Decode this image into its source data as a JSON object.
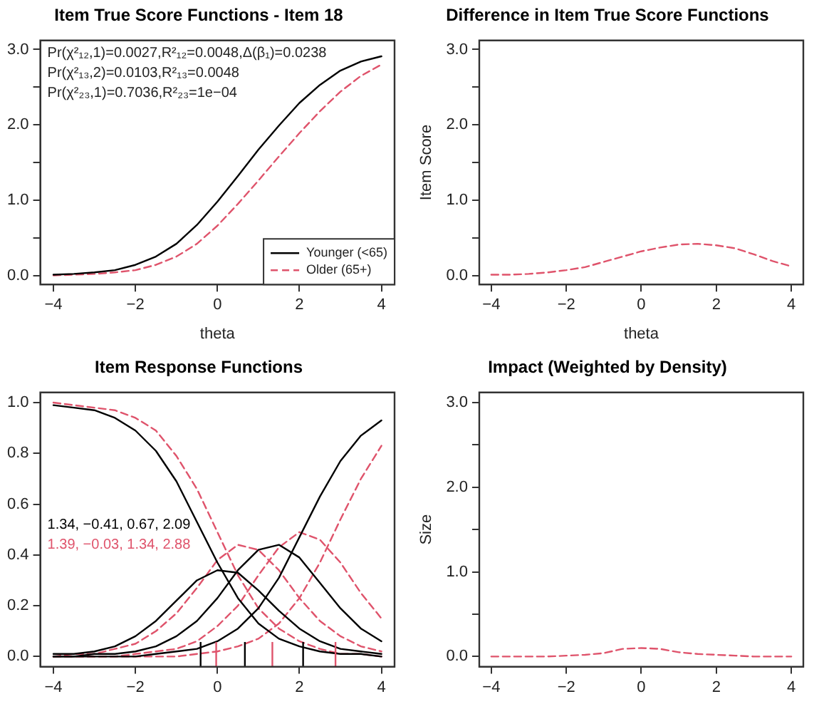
{
  "chart_data": [
    {
      "type": "line",
      "title": "Item True Score Functions - Item 18",
      "xlabel": "theta",
      "xlim": [
        -4.32,
        4.32
      ],
      "ylim": [
        -0.12,
        3.12
      ],
      "xticks": [
        -4,
        -2,
        0,
        2,
        4
      ],
      "yticks": [
        {
          "value": 0,
          "label": "0.0"
        },
        {
          "value": 0.5,
          "label": null
        },
        {
          "value": 1,
          "label": "1.0"
        },
        {
          "value": 1.5,
          "label": null
        },
        {
          "value": 2,
          "label": "2.0"
        },
        {
          "value": 2.5,
          "label": null
        },
        {
          "value": 3,
          "label": "3.0"
        }
      ],
      "x": [
        -4,
        -3.5,
        -3,
        -2.5,
        -2,
        -1.5,
        -1,
        -0.5,
        0,
        0.5,
        1,
        1.5,
        2,
        2.5,
        3,
        3.5,
        4
      ],
      "series": [
        {
          "name": "Younger (<65)",
          "color": "#000000",
          "line_style": "solid",
          "values": [
            0.01,
            0.02,
            0.04,
            0.07,
            0.14,
            0.25,
            0.42,
            0.67,
            0.98,
            1.32,
            1.67,
            1.99,
            2.29,
            2.53,
            2.72,
            2.84,
            2.91
          ]
        },
        {
          "name": "Older (65+)",
          "color": "#df536b",
          "line_style": "dashed",
          "values": [
            0.0,
            0.01,
            0.02,
            0.04,
            0.07,
            0.14,
            0.25,
            0.42,
            0.66,
            0.95,
            1.26,
            1.58,
            1.89,
            2.18,
            2.44,
            2.65,
            2.8
          ]
        }
      ],
      "legend": "bottom right",
      "grid": false,
      "annotations": [
        "Pr(χ²₁₂,1)=0.0027,R²₁₂=0.0048,Δ(β₁)=0.0238",
        "Pr(χ²₁₃,2)=0.0103,R²₁₃=0.0048",
        "Pr(χ²₂₃,1)=0.7036,R²₂₃=1e−04"
      ]
    },
    {
      "type": "line",
      "title": "Difference in Item True Score Functions",
      "xlabel": "theta",
      "ylabel": "Item Score",
      "xlim": [
        -4.32,
        4.32
      ],
      "ylim": [
        -0.12,
        3.12
      ],
      "xticks": [
        -4,
        -2,
        0,
        2,
        4
      ],
      "yticks": [
        {
          "value": 0,
          "label": "0.0"
        },
        {
          "value": 0.5,
          "label": null
        },
        {
          "value": 1,
          "label": "1.0"
        },
        {
          "value": 1.5,
          "label": null
        },
        {
          "value": 2,
          "label": "2.0"
        },
        {
          "value": 2.5,
          "label": null
        },
        {
          "value": 3,
          "label": "3.0"
        }
      ],
      "x": [
        -4,
        -3.5,
        -3,
        -2.5,
        -2,
        -1.5,
        -1,
        -0.5,
        0,
        0.5,
        1,
        1.5,
        2,
        2.5,
        3,
        3.5,
        4
      ],
      "series": [
        {
          "color": "#df536b",
          "line_style": "dashed",
          "values": [
            0.01,
            0.01,
            0.02,
            0.04,
            0.07,
            0.11,
            0.18,
            0.25,
            0.32,
            0.37,
            0.41,
            0.42,
            0.4,
            0.36,
            0.28,
            0.19,
            0.12
          ]
        }
      ],
      "grid": false
    },
    {
      "type": "line",
      "title": "Item Response Functions",
      "xlim": [
        -4.32,
        4.32
      ],
      "ylim": [
        -0.04,
        1.04
      ],
      "xticks": [
        -4,
        -2,
        0,
        2,
        4
      ],
      "yticks": [
        {
          "value": 0,
          "label": "0.0"
        },
        {
          "value": 0.2,
          "label": "0.2"
        },
        {
          "value": 0.4,
          "label": "0.4"
        },
        {
          "value": 0.6,
          "label": "0.6"
        },
        {
          "value": 0.8,
          "label": "0.8"
        },
        {
          "value": 1,
          "label": "1.0"
        }
      ],
      "x": [
        -4,
        -3.5,
        -3,
        -2.5,
        -2,
        -1.5,
        -1,
        -0.5,
        0,
        0.5,
        1,
        1.5,
        2,
        2.5,
        3,
        3.5,
        4
      ],
      "series": [
        {
          "color": "#000000",
          "line_style": "solid",
          "values": [
            0.99,
            0.98,
            0.97,
            0.94,
            0.89,
            0.81,
            0.69,
            0.53,
            0.37,
            0.23,
            0.13,
            0.07,
            0.04,
            0.02,
            0.01,
            0.01,
            0.0
          ]
        },
        {
          "color": "#000000",
          "line_style": "solid",
          "values": [
            0.01,
            0.01,
            0.02,
            0.04,
            0.08,
            0.14,
            0.22,
            0.3,
            0.34,
            0.33,
            0.26,
            0.18,
            0.11,
            0.06,
            0.03,
            0.02,
            0.01
          ]
        },
        {
          "color": "#000000",
          "line_style": "solid",
          "values": [
            0.0,
            0.0,
            0.01,
            0.01,
            0.02,
            0.04,
            0.08,
            0.14,
            0.23,
            0.34,
            0.42,
            0.44,
            0.39,
            0.29,
            0.19,
            0.11,
            0.06
          ]
        },
        {
          "color": "#000000",
          "line_style": "solid",
          "values": [
            0.0,
            0.0,
            0.0,
            0.0,
            0.0,
            0.01,
            0.02,
            0.03,
            0.06,
            0.11,
            0.19,
            0.31,
            0.47,
            0.63,
            0.77,
            0.87,
            0.93
          ]
        },
        {
          "color": "#df536b",
          "line_style": "dashed",
          "values": [
            1.0,
            0.99,
            0.98,
            0.97,
            0.94,
            0.89,
            0.79,
            0.66,
            0.49,
            0.32,
            0.19,
            0.11,
            0.06,
            0.03,
            0.01,
            0.01,
            0.0
          ]
        },
        {
          "color": "#df536b",
          "line_style": "dashed",
          "values": [
            0.0,
            0.01,
            0.01,
            0.03,
            0.05,
            0.1,
            0.17,
            0.27,
            0.38,
            0.44,
            0.42,
            0.34,
            0.23,
            0.14,
            0.08,
            0.04,
            0.02
          ]
        },
        {
          "color": "#df536b",
          "line_style": "dashed",
          "values": [
            0.0,
            0.0,
            0.0,
            0.0,
            0.01,
            0.02,
            0.03,
            0.06,
            0.12,
            0.2,
            0.32,
            0.43,
            0.49,
            0.46,
            0.37,
            0.25,
            0.15
          ]
        },
        {
          "color": "#df536b",
          "line_style": "dashed",
          "values": [
            0.0,
            0.0,
            0.0,
            0.0,
            0.0,
            0.0,
            0.0,
            0.01,
            0.02,
            0.04,
            0.07,
            0.13,
            0.23,
            0.37,
            0.54,
            0.7,
            0.83
          ]
        }
      ],
      "ref_lines": [
        {
          "axis": "x",
          "value": -0.41,
          "color": "#000000"
        },
        {
          "axis": "x",
          "value": 0.67,
          "color": "#000000"
        },
        {
          "axis": "x",
          "value": 2.09,
          "color": "#000000"
        },
        {
          "axis": "x",
          "value": -0.03,
          "color": "#df536b"
        },
        {
          "axis": "x",
          "value": 1.34,
          "color": "#df536b"
        },
        {
          "axis": "x",
          "value": 2.88,
          "color": "#df536b"
        }
      ],
      "grid": false,
      "annotations": [
        "1.34, −0.41, 0.67, 2.09",
        "1.39, −0.03, 1.34, 2.88"
      ]
    },
    {
      "type": "line",
      "title": "Impact (Weighted by Density)",
      "ylabel": "Size",
      "xlim": [
        -4.32,
        4.32
      ],
      "ylim": [
        -0.12,
        3.12
      ],
      "xticks": [
        -4,
        -2,
        0,
        2,
        4
      ],
      "yticks": [
        {
          "value": 0,
          "label": "0.0"
        },
        {
          "value": 0.5,
          "label": null
        },
        {
          "value": 1,
          "label": "1.0"
        },
        {
          "value": 1.5,
          "label": null
        },
        {
          "value": 2,
          "label": "2.0"
        },
        {
          "value": 2.5,
          "label": null
        },
        {
          "value": 3,
          "label": "3.0"
        }
      ],
      "x": [
        -4,
        -3.5,
        -3,
        -2.5,
        -2,
        -1.5,
        -1,
        -0.5,
        0,
        0.5,
        1,
        1.5,
        2,
        2.5,
        3,
        3.5,
        4
      ],
      "series": [
        {
          "color": "#df536b",
          "line_style": "dashed",
          "values": [
            0.0,
            0.0,
            0.0,
            0.0,
            0.01,
            0.02,
            0.04,
            0.09,
            0.1,
            0.09,
            0.05,
            0.03,
            0.02,
            0.01,
            0.0,
            0.0,
            0.0
          ]
        }
      ],
      "grid": false
    }
  ]
}
